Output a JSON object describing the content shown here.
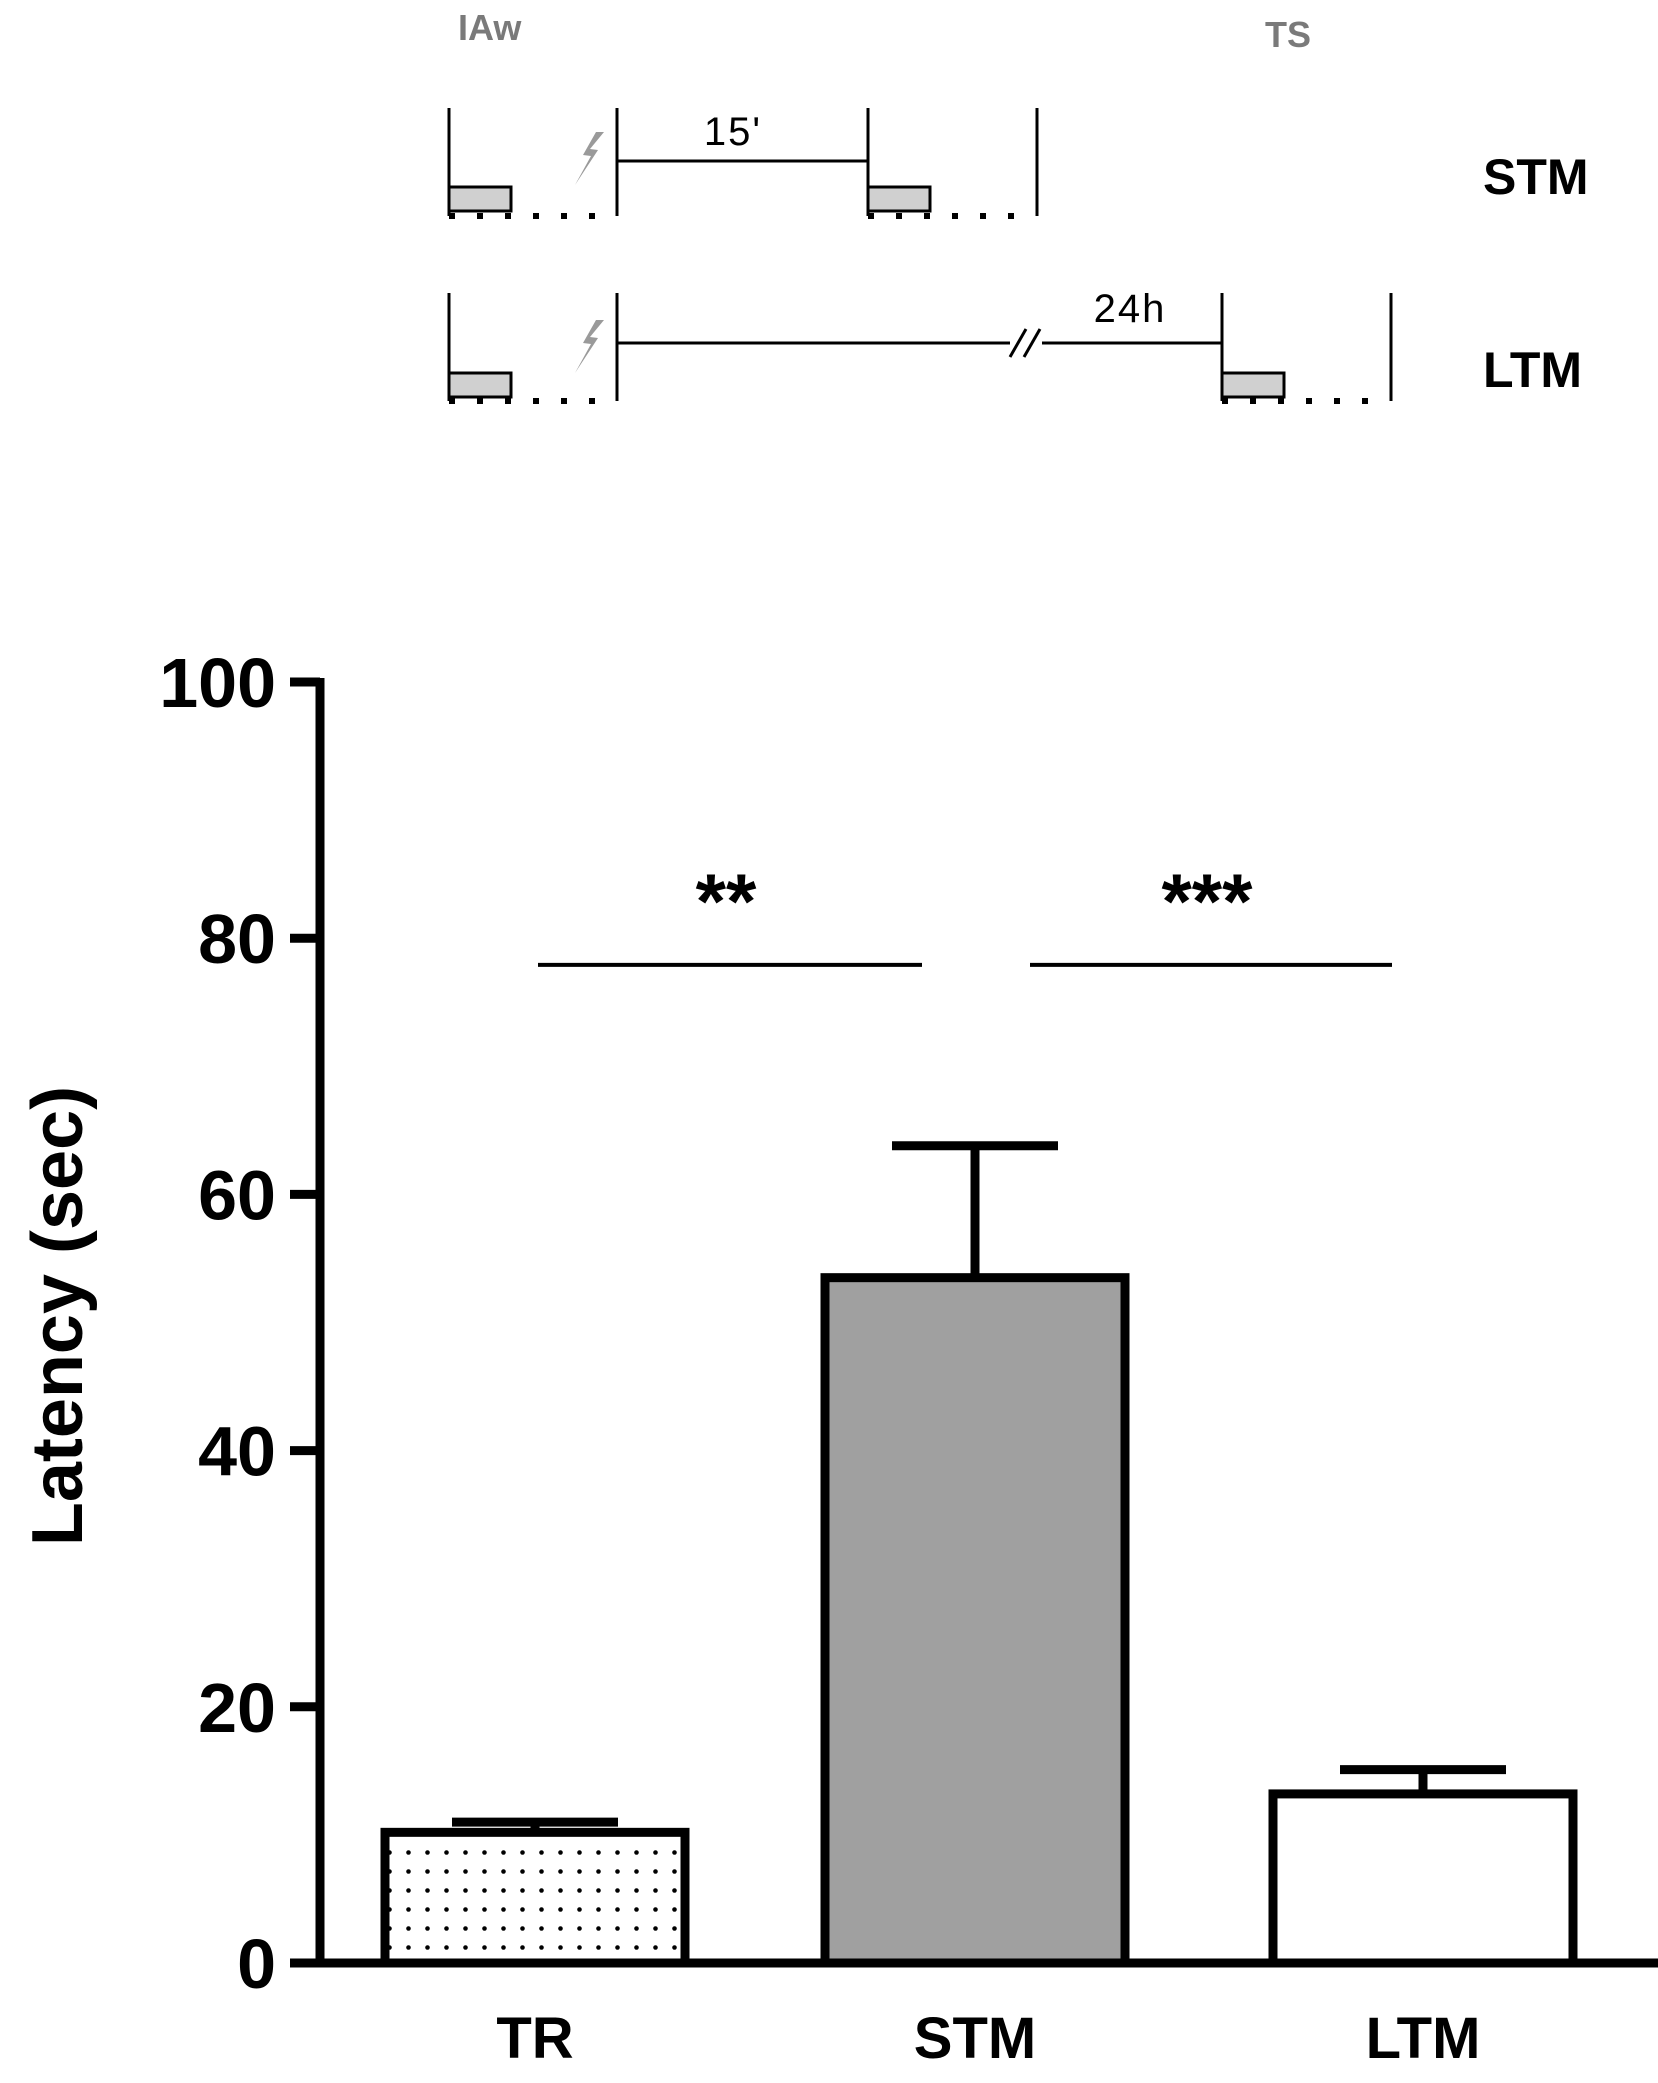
{
  "protocol": {
    "training_label": "IAw",
    "test_label": "TS",
    "rows": [
      {
        "name": "STM",
        "interval": "15'"
      },
      {
        "name": "LTM",
        "interval": "24h"
      }
    ]
  },
  "chart_data": {
    "type": "bar",
    "ylabel": "Latency (sec)",
    "xlabel": "",
    "ylim": [
      0,
      100
    ],
    "yticks": [
      0,
      20,
      40,
      60,
      80,
      100
    ],
    "grid": false,
    "categories": [
      "TR",
      "STM",
      "LTM"
    ],
    "values": [
      10.2,
      53.5,
      13.2
    ],
    "errors": [
      0.8,
      10.3,
      1.9
    ],
    "bar_fills": [
      "dotted",
      "#a0a0a0",
      "#ffffff"
    ],
    "significance": [
      {
        "from": "TR",
        "to": "STM",
        "label": "**",
        "y": 78
      },
      {
        "from": "STM",
        "to": "LTM",
        "label": "***",
        "y": 78
      }
    ]
  }
}
